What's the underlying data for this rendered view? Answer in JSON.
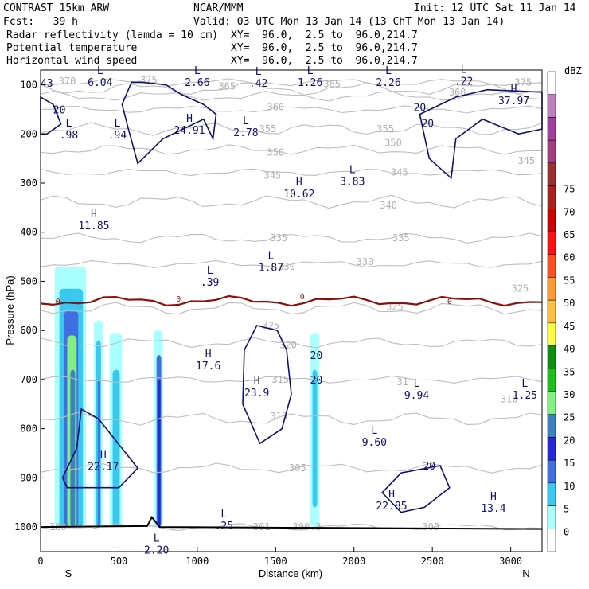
{
  "header": {
    "model": "CONTRAST 15km ARW",
    "org": "NCAR/MMM",
    "init": "Init: 12 UTC Sat 11 Jan 14",
    "fcst": "Fcst:   39 h",
    "valid": "Valid: 03 UTC Mon 13 Jan 14 (13 ChT Mon 13 Jan 14)",
    "fields": [
      {
        "name": "Radar reflectivity (lamda = 10 cm)",
        "xy": "XY=  96.0,  2.5 to  96.0,214.7",
        "color": "#000000"
      },
      {
        "name": "Potential temperature",
        "xy": "XY=  96.0,  2.5 to  96.0,214.7",
        "color": "#c0c0c0"
      },
      {
        "name": "Horizontal wind speed",
        "xy": "XY=  96.0,  2.5 to  96.0,214.7",
        "color": "#000080"
      }
    ]
  },
  "chart_data": {
    "type": "cross-section",
    "xlabel": "Distance (km)",
    "ylabel": "Pressure (hPa)",
    "xlim": [
      0,
      3200
    ],
    "ylim": [
      1050,
      70
    ],
    "xticks": [
      0,
      500,
      1000,
      1500,
      2000,
      2500,
      3000
    ],
    "yticks": [
      100,
      200,
      300,
      400,
      500,
      600,
      700,
      800,
      900,
      1000
    ],
    "end_labels": {
      "left": "S",
      "right": "N"
    },
    "colorbar": {
      "unit": "dBZ",
      "levels": [
        0,
        5,
        10,
        15,
        20,
        25,
        30,
        35,
        40,
        45,
        50,
        55,
        60,
        65,
        70,
        75
      ],
      "colors": [
        "#ffffff",
        "#aaffff",
        "#38c8f0",
        "#3f6fe0",
        "#2828d8",
        "#3b82c0",
        "#80f080",
        "#19c019",
        "#0f8f0f",
        "#fffb40",
        "#ffc040",
        "#ff9a30",
        "#ff5020",
        "#ff1010",
        "#cc0000",
        "#aa2020",
        "#9a3030",
        "#a04080",
        "#a040a0",
        "#c080c0",
        "#ffffff"
      ]
    },
    "theta_contours": [
      {
        "value": 300,
        "p": 1000
      },
      {
        "value": 305,
        "p": 880
      },
      {
        "value": 310,
        "p": 780
      },
      {
        "value": 315,
        "p": 700
      },
      {
        "value": 320,
        "p": 625
      },
      {
        "value": 325,
        "p": 555
      },
      {
        "value": 330,
        "p": 465
      },
      {
        "value": 335,
        "p": 412
      },
      {
        "value": 340,
        "p": 338
      },
      {
        "value": 345,
        "p": 278
      },
      {
        "value": 350,
        "p": 232
      },
      {
        "value": 355,
        "p": 190
      },
      {
        "value": 360,
        "p": 150
      },
      {
        "value": 365,
        "p": 123
      },
      {
        "value": 370,
        "p": 108
      },
      {
        "value": 375,
        "p": 95
      }
    ],
    "theta_labels": [
      {
        "text": "300",
        "x": 110,
        "p": 1000
      },
      {
        "text": "301",
        "x": 1410,
        "p": 1000
      },
      {
        "text": "300.3",
        "x": 1700,
        "p": 1000
      },
      {
        "text": "300",
        "x": 2490,
        "p": 1000
      },
      {
        "text": "305",
        "x": 1640,
        "p": 880
      },
      {
        "text": "310",
        "x": 1520,
        "p": 775
      },
      {
        "text": "310",
        "x": 2990,
        "p": 740
      },
      {
        "text": "315",
        "x": 1530,
        "p": 700
      },
      {
        "text": "31",
        "x": 2310,
        "p": 705
      },
      {
        "text": "320",
        "x": 1580,
        "p": 630
      },
      {
        "text": "325",
        "x": 1470,
        "p": 590
      },
      {
        "text": "325",
        "x": 2260,
        "p": 552
      },
      {
        "text": "325",
        "x": 3060,
        "p": 515
      },
      {
        "text": "330",
        "x": 1570,
        "p": 470
      },
      {
        "text": "330",
        "x": 2070,
        "p": 460
      },
      {
        "text": "335",
        "x": 1520,
        "p": 412
      },
      {
        "text": "335",
        "x": 2300,
        "p": 412
      },
      {
        "text": "340",
        "x": 2220,
        "p": 345
      },
      {
        "text": "345",
        "x": 1480,
        "p": 285
      },
      {
        "text": "345",
        "x": 2290,
        "p": 278
      },
      {
        "text": "345",
        "x": 3100,
        "p": 255
      },
      {
        "text": "350",
        "x": 1500,
        "p": 238
      },
      {
        "text": "350",
        "x": 2250,
        "p": 218
      },
      {
        "text": "355",
        "x": 1450,
        "p": 190
      },
      {
        "text": "355",
        "x": 2200,
        "p": 190
      },
      {
        "text": "360",
        "x": 1500,
        "p": 145
      },
      {
        "text": "360",
        "x": 2660,
        "p": 115
      },
      {
        "text": "365",
        "x": 1190,
        "p": 103
      },
      {
        "text": "365",
        "x": 1860,
        "p": 98
      },
      {
        "text": "370",
        "x": 170,
        "p": 93
      },
      {
        "text": "375",
        "x": 690,
        "p": 90
      },
      {
        "text": "375",
        "x": 3080,
        "p": 95
      }
    ],
    "wind_extrema": [
      {
        "kind": "L",
        "value": "6.04",
        "x": 380,
        "p": 78
      },
      {
        "kind": "L",
        "value": "2.66",
        "x": 1000,
        "p": 78
      },
      {
        "kind": "L",
        "value": ".42",
        "x": 1390,
        "p": 80
      },
      {
        "kind": "L",
        "value": "1.26",
        "x": 1720,
        "p": 78
      },
      {
        "kind": "L",
        "value": "2.26",
        "x": 2220,
        "p": 78
      },
      {
        "kind": "L",
        "value": ".22",
        "x": 2700,
        "p": 76
      },
      {
        "kind": "H",
        "value": "37.97",
        "x": 3020,
        "p": 115
      },
      {
        "kind": "H",
        "value": "24.91",
        "x": 950,
        "p": 175
      },
      {
        "kind": "L",
        "value": "2.78",
        "x": 1310,
        "p": 180
      },
      {
        "kind": "L",
        "value": ".98",
        "x": 180,
        "p": 185
      },
      {
        "kind": "L",
        "value": ".94",
        "x": 490,
        "p": 185
      },
      {
        "kind": "L",
        "value": "3.83",
        "x": 1990,
        "p": 280
      },
      {
        "kind": "H",
        "value": "10.62",
        "x": 1650,
        "p": 305
      },
      {
        "kind": "H",
        "value": "11.85",
        "x": 340,
        "p": 370
      },
      {
        "kind": "L",
        "value": "1.87",
        "x": 1470,
        "p": 455
      },
      {
        "kind": "L",
        "value": ".39",
        "x": 1080,
        "p": 485
      },
      {
        "kind": "H",
        "value": "17.6",
        "x": 1070,
        "p": 655
      },
      {
        "kind": "H",
        "value": "23.9",
        "x": 1380,
        "p": 710
      },
      {
        "kind": "L",
        "value": "9.94",
        "x": 2400,
        "p": 715
      },
      {
        "kind": "L",
        "value": "1.25",
        "x": 3090,
        "p": 715
      },
      {
        "kind": "L",
        "value": "9.60",
        "x": 2130,
        "p": 810
      },
      {
        "kind": "H",
        "value": "22.17",
        "x": 400,
        "p": 860
      },
      {
        "kind": "H",
        "value": "22.85",
        "x": 2240,
        "p": 940
      },
      {
        "kind": "H",
        "value": "13.4",
        "x": 2890,
        "p": 945
      },
      {
        "kind": "L",
        "value": ".25",
        "x": 1170,
        "p": 980
      },
      {
        "kind": "L",
        "value": "2.20",
        "x": 740,
        "p": 1030
      }
    ],
    "wind_contour_labels": [
      {
        "text": "43",
        "x": 40,
        "p": 96
      },
      {
        "text": "20",
        "x": 120,
        "p": 150
      },
      {
        "text": "20",
        "x": 2420,
        "p": 145
      },
      {
        "text": "20",
        "x": 2470,
        "p": 178
      },
      {
        "text": "20",
        "x": 1760,
        "p": 650
      },
      {
        "text": "20",
        "x": 1760,
        "p": 700
      },
      {
        "text": "20",
        "x": 2480,
        "p": 875
      }
    ],
    "zero_isotherm_labels": [
      {
        "text": "0",
        "x": 110,
        "p": 540
      },
      {
        "text": "0",
        "x": 880,
        "p": 535
      },
      {
        "text": "0",
        "x": 1670,
        "p": 530
      },
      {
        "text": "0",
        "x": 2610,
        "p": 540
      }
    ]
  }
}
